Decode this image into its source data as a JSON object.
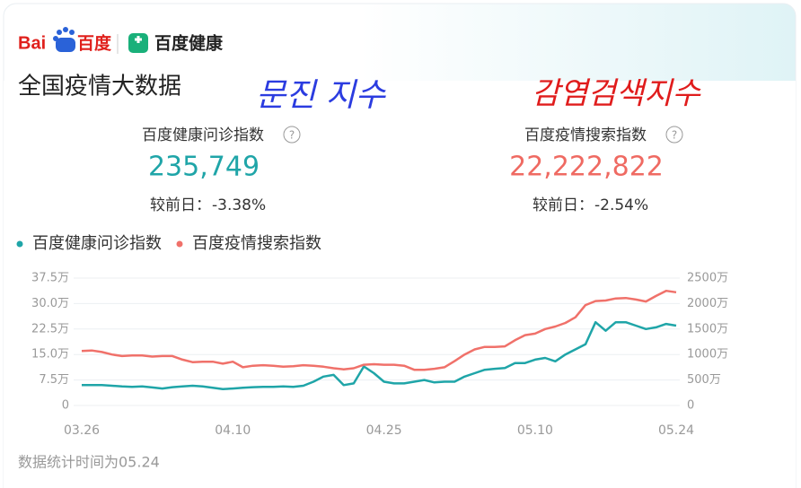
{
  "logo": {
    "baidu": "Bai",
    "baidu_cn": "百度",
    "health": "百度健康"
  },
  "title": "全国疫情大数据",
  "annotations": [
    "문진 지수",
    "감염검색지수"
  ],
  "stats": [
    {
      "label": "百度健康问诊指数",
      "value": "235,749",
      "change_label": "较前日：",
      "change": "-3.38%"
    },
    {
      "label": "百度疫情搜索指数",
      "value": "22,222,822",
      "change_label": "较前日：",
      "change": "-2.54%"
    }
  ],
  "footer": "数据统计时间为05.24",
  "chart_data": {
    "type": "line",
    "categories": [
      "03.26",
      null,
      null,
      null,
      null,
      null,
      null,
      null,
      null,
      null,
      null,
      null,
      null,
      null,
      null,
      "04.10",
      null,
      null,
      null,
      null,
      null,
      null,
      null,
      null,
      null,
      null,
      null,
      null,
      null,
      null,
      "04.25",
      null,
      null,
      null,
      null,
      null,
      null,
      null,
      null,
      null,
      null,
      null,
      null,
      null,
      null,
      "05.10",
      null,
      null,
      null,
      null,
      null,
      null,
      null,
      null,
      null,
      null,
      null,
      null,
      null,
      "05.24"
    ],
    "ylim": [
      0,
      37.5
    ],
    "yticks": [
      0,
      {
        "value": 7.5,
        "label": "7.5万"
      },
      {
        "value": 15,
        "label": "15.0万"
      },
      {
        "value": 22.5,
        "label": "22.5万"
      },
      {
        "value": 30,
        "label": "30.0万"
      },
      {
        "value": 37.5,
        "label": "37.5万"
      }
    ],
    "y2lim": [
      0,
      2500
    ],
    "y2ticks": [
      0,
      {
        "value": 500,
        "label": "500万"
      },
      {
        "value": 1000,
        "label": "1000万"
      },
      {
        "value": 1500,
        "label": "1500万"
      },
      {
        "value": 2000,
        "label": "2000万"
      },
      {
        "value": 2500,
        "label": "2500万"
      }
    ],
    "grid": true,
    "legend": "top-left",
    "series": [
      {
        "name": "百度健康问诊指数",
        "color": "#1fa5a8",
        "values": [
          6,
          6,
          6,
          5.8,
          5.6,
          5.5,
          5.6,
          5.3,
          5.0,
          5.4,
          5.6,
          5.8,
          5.6,
          5.2,
          4.8,
          5,
          5.2,
          5.4,
          5.5,
          5.5,
          5.6,
          5.5,
          5.8,
          7,
          8.5,
          9,
          6,
          6.5,
          11.5,
          9.5,
          7,
          6.5,
          6.5,
          7,
          7.5,
          6.8,
          7,
          7,
          8.5,
          9.5,
          10.5,
          10.8,
          11,
          12.5,
          12.5,
          13.5,
          14,
          13,
          15,
          16.5,
          18,
          24.5,
          22,
          24.5,
          24.5,
          23.5,
          22.5,
          23,
          24,
          23.5
        ]
      },
      {
        "name": "百度疫情搜索指数",
        "color": "#f0716a",
        "axis": "y2",
        "values": [
          1070,
          1080,
          1050,
          1000,
          970,
          980,
          980,
          960,
          970,
          970,
          900,
          850,
          860,
          860,
          820,
          860,
          750,
          780,
          790,
          780,
          760,
          770,
          790,
          780,
          760,
          730,
          710,
          730,
          800,
          810,
          800,
          800,
          780,
          700,
          700,
          720,
          750,
          870,
          1000,
          1100,
          1150,
          1150,
          1160,
          1280,
          1380,
          1410,
          1500,
          1550,
          1620,
          1730,
          1970,
          2050,
          2060,
          2100,
          2110,
          2080,
          2040,
          2150,
          2250,
          2222
        ]
      }
    ]
  }
}
